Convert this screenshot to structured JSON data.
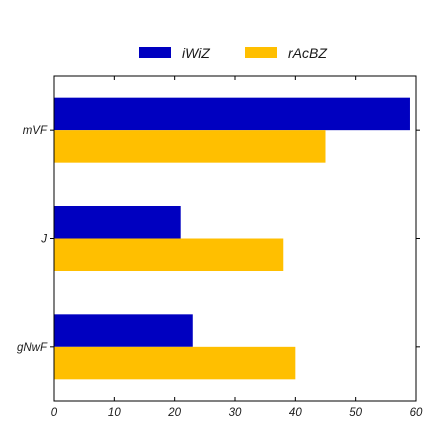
{
  "chart_data": {
    "type": "bar",
    "orientation": "horizontal",
    "categories": [
      "gNwF",
      "J",
      "mVF"
    ],
    "series": [
      {
        "name": "iWiZ",
        "values": [
          23,
          21,
          59
        ],
        "color": "#0000c0"
      },
      {
        "name": "rAcBZ",
        "values": [
          40,
          38,
          45
        ],
        "color": "#ffbf00"
      }
    ],
    "title": "",
    "xlabel": "",
    "ylabel": "",
    "xlim": [
      0,
      60
    ],
    "xticks": [
      0,
      10,
      20,
      30,
      40,
      50,
      60
    ],
    "grid": false,
    "legend_position": "top-center"
  }
}
